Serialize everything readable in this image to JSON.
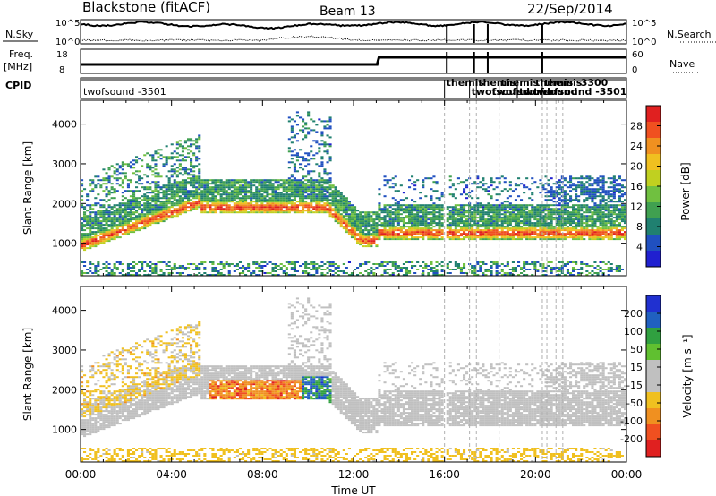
{
  "header": {
    "title": "Blackstone (fitACF)",
    "beam": "Beam 13",
    "date": "22/Sep/2014"
  },
  "panels": {
    "nsky": {
      "label": "N.Sky",
      "tick_top": "10^5",
      "tick_bottom": "10^0",
      "right_label": "N.Search",
      "right_top": "10^5",
      "right_bottom": "10^0"
    },
    "freq": {
      "label_line1": "Freq.",
      "label_line2": "[MHz]",
      "tick_top": "18",
      "tick_bottom": "8",
      "right_label": "Nave",
      "right_top": "60",
      "right_bottom": "0"
    },
    "cpid": {
      "label": "CPID",
      "entries": [
        {
          "text": "twofsound -3501"
        },
        {
          "text": "themis -3300"
        },
        {
          "text": "twofsound -3501"
        }
      ],
      "clutter": [
        "themis",
        "twofsound",
        "themis",
        "twofsound"
      ]
    }
  },
  "colors": {
    "power_scale": [
      "#2020d0",
      "#2050c0",
      "#208070",
      "#40a050",
      "#70c040",
      "#c0d020",
      "#f0c020",
      "#f09020",
      "#f05020",
      "#e02020"
    ],
    "velocity_scale": [
      "#2030d0",
      "#2060c0",
      "#30a040",
      "#60c030",
      "#c0c0c0",
      "#c0c0c0",
      "#f0c020",
      "#f09020",
      "#f05020",
      "#e02020"
    ]
  },
  "chart_data": [
    {
      "type": "heatmap",
      "name": "power",
      "title": "",
      "ylabel": "Slant Range [km]",
      "ylim": [
        180,
        4600
      ],
      "yticks": [
        1000,
        2000,
        3000,
        4000
      ],
      "xlim": [
        0,
        24
      ],
      "xticks": [
        0,
        4,
        8,
        12,
        16,
        20,
        24
      ],
      "xticklabels": [
        "00:00",
        "04:00",
        "08:00",
        "12:00",
        "16:00",
        "20:00",
        "00:00"
      ],
      "colorbar": {
        "label": "Power [dB]",
        "ticks": [
          4,
          8,
          12,
          16,
          20,
          24,
          28
        ],
        "range": [
          0,
          32
        ]
      },
      "data_gap_lines_hours": [
        16.0,
        17.1,
        17.4,
        18.0,
        18.4,
        20.3,
        20.5,
        20.9,
        21.2
      ]
    },
    {
      "type": "heatmap",
      "name": "velocity",
      "title": "",
      "ylabel": "Slant Range [km]",
      "ylim": [
        180,
        4600
      ],
      "yticks": [
        1000,
        2000,
        3000,
        4000
      ],
      "xlim": [
        0,
        24
      ],
      "xticks": [
        0,
        4,
        8,
        12,
        16,
        20,
        24
      ],
      "xticklabels": [
        "00:00",
        "04:00",
        "08:00",
        "12:00",
        "16:00",
        "20:00",
        "00:00"
      ],
      "xlabel": "Time UT",
      "colorbar": {
        "label": "Velocity [m s^-1]",
        "ticks": [
          200,
          100,
          50,
          15,
          -15,
          -50,
          -100,
          -200
        ]
      }
    }
  ]
}
